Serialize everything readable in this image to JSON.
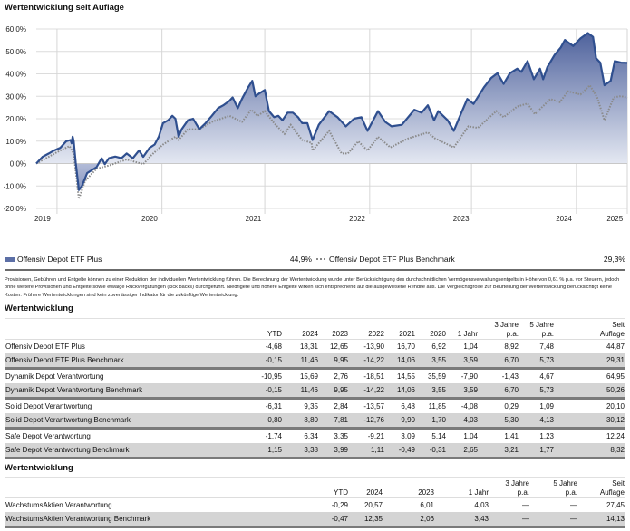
{
  "chart_data": {
    "type": "area",
    "title": "Wertentwicklung seit Auflage",
    "xlabel": "",
    "ylabel": "",
    "x_unit": "years since inception (approx.)",
    "xlim": [
      0,
      5.69
    ],
    "ylim": [
      -20,
      60
    ],
    "yticks": [
      60,
      50,
      40,
      30,
      20,
      10,
      0,
      -10,
      -20
    ],
    "ytick_labels": [
      "60,0%",
      "50,0%",
      "40,0%",
      "30,0%",
      "20,0%",
      "10,0%",
      "0,0%",
      "-10,0%",
      "-20,0%"
    ],
    "x_gridlines": [
      0.2,
      1.21,
      2.2,
      3.21,
      4.19,
      5.2
    ],
    "xticks": [
      {
        "label": "2019",
        "x": 0.06
      },
      {
        "label": "2020",
        "x": 1.09
      },
      {
        "label": "2021",
        "x": 2.09
      },
      {
        "label": "2022",
        "x": 3.09
      },
      {
        "label": "2023",
        "x": 4.09
      },
      {
        "label": "2024",
        "x": 5.08
      },
      {
        "label": "2025",
        "x": 5.57
      }
    ],
    "grid": true,
    "legend_position": "bottom",
    "series": [
      {
        "name": "Offensiv Depot ETF Plus",
        "final_label": "44,9%",
        "color": "#2f4f8f",
        "style": "solid-area",
        "x": [
          0,
          0.06,
          0.12,
          0.17,
          0.23,
          0.29,
          0.33,
          0.34,
          0.35,
          0.36,
          0.38,
          0.41,
          0.44,
          0.49,
          0.58,
          0.63,
          0.66,
          0.7,
          0.76,
          0.82,
          0.87,
          0.93,
          0.99,
          1.03,
          1.09,
          1.14,
          1.18,
          1.22,
          1.27,
          1.31,
          1.34,
          1.37,
          1.4,
          1.46,
          1.51,
          1.57,
          1.63,
          1.69,
          1.75,
          1.8,
          1.86,
          1.89,
          1.94,
          1.98,
          2.04,
          2.08,
          2.11,
          2.15,
          2.2,
          2.24,
          2.29,
          2.33,
          2.37,
          2.42,
          2.47,
          2.52,
          2.56,
          2.61,
          2.65,
          2.66,
          2.72,
          2.82,
          2.9,
          2.98,
          3.06,
          3.13,
          3.19,
          3.29,
          3.36,
          3.42,
          3.52,
          3.64,
          3.71,
          3.77,
          3.83,
          3.87,
          3.96,
          4.02,
          4.08,
          4.15,
          4.21,
          4.31,
          4.38,
          4.44,
          4.5,
          4.56,
          4.63,
          4.67,
          4.73,
          4.79,
          4.85,
          4.88,
          4.92,
          4.99,
          5.05,
          5.09,
          5.17,
          5.24,
          5.31,
          5.36,
          5.39,
          5.43,
          5.47,
          5.53,
          5.57,
          5.63,
          5.69
        ],
        "y": [
          0,
          3,
          4.5,
          5.8,
          7,
          10,
          10.5,
          9,
          12,
          10,
          0.4,
          -11.8,
          -10,
          -4.3,
          -1.6,
          2.4,
          -0.3,
          2.4,
          3.1,
          2.4,
          4.5,
          2.4,
          5.8,
          3,
          7,
          8.5,
          12,
          18,
          19.3,
          21.3,
          20,
          12,
          15.3,
          19.3,
          20,
          15.3,
          18,
          21.3,
          24.7,
          26,
          28,
          29.5,
          24.7,
          28.8,
          34,
          36.9,
          30,
          31.4,
          32.8,
          23.4,
          20.7,
          21.3,
          19.3,
          22.7,
          22.7,
          20.7,
          18,
          18,
          12,
          10.5,
          17.3,
          23.4,
          20.7,
          16.6,
          20,
          20.7,
          14.6,
          23.4,
          18.6,
          16.6,
          17.3,
          24,
          22.7,
          26,
          19.3,
          23.4,
          19.3,
          14.6,
          21.3,
          28.8,
          26.6,
          34,
          38.2,
          40.3,
          35.5,
          40.3,
          42.3,
          40.9,
          45.7,
          37.6,
          42.3,
          37.6,
          43,
          48.4,
          51.8,
          55.1,
          52.4,
          55.8,
          58.2,
          56.5,
          47,
          45,
          34.9,
          36.9,
          45.7,
          45,
          44.9
        ]
      },
      {
        "name": "Offensiv Depot ETF Plus Benchmark",
        "final_label": "29,3%",
        "color": "#8a8a8a",
        "style": "dotted",
        "x": [
          0,
          0.23,
          0.32,
          0.36,
          0.41,
          0.47,
          0.58,
          0.7,
          0.87,
          1.03,
          1.11,
          1.22,
          1.34,
          1.37,
          1.46,
          1.57,
          1.69,
          1.86,
          1.98,
          2.07,
          2.13,
          2.2,
          2.29,
          2.39,
          2.45,
          2.56,
          2.65,
          2.66,
          2.82,
          2.94,
          3.0,
          3.1,
          3.19,
          3.29,
          3.41,
          3.58,
          3.77,
          3.84,
          4.02,
          4.16,
          4.25,
          4.43,
          4.5,
          4.63,
          4.73,
          4.8,
          4.95,
          5.04,
          5.12,
          5.24,
          5.33,
          5.4,
          5.47,
          5.56,
          5.63,
          5.69
        ],
        "y": [
          0,
          5.8,
          7.8,
          4.5,
          -15.8,
          -7.7,
          -2.3,
          -0.9,
          1.8,
          -0.3,
          3.8,
          8.5,
          12,
          10.5,
          15.3,
          15.3,
          18.6,
          21.3,
          18.6,
          24,
          21.3,
          23.4,
          18,
          13.2,
          17.3,
          10.5,
          9.2,
          5.8,
          14.6,
          4.5,
          4.5,
          9.9,
          5.8,
          11.9,
          7.2,
          11.2,
          13.9,
          11.2,
          7.2,
          16.6,
          15.9,
          23.4,
          20.7,
          25.4,
          26.8,
          22,
          28.8,
          27.4,
          32.2,
          30.8,
          34.9,
          29.5,
          19.3,
          29.5,
          30.1,
          29.3
        ]
      }
    ]
  },
  "disclaimer": "Provisionen, Gebühren und Entgelte können zu einer Reduktion der individuellen Wertentwicklung führen. Die Berechnung der Wertentwicklung wurde unter Berücksichtigung des durchschnittlichen Vermögensverwaltungsentgelts in Höhe von 0,61 % p.a. vor Steuern, jedoch ohne weitere Provisionen und Entgelte sowie etwaige Rückvergütungen (kick backs) durchgeführt. Niedrigere und höhere Entgelte wirken sich entsprechend auf die ausgewiesene Rendite aus. Die Vergleichsgröße zur Beurteilung der Wertentwicklung berücksichtigt keine Kosten. Frühere Wertentwicklungen sind kein zuverlässiger Indikator für die zukünftige Wertentwicklung.",
  "table1": {
    "heading": "Wertentwicklung",
    "columns": [
      "YTD",
      "2024",
      "2023",
      "2022",
      "2021",
      "2020",
      "1 Jahr",
      "3 Jahre p.a.",
      "5 Jahre p.a.",
      "Seit Auflage"
    ],
    "col_lines": [
      [
        "YTD",
        ""
      ],
      [
        "2024",
        ""
      ],
      [
        "2023",
        ""
      ],
      [
        "2022",
        ""
      ],
      [
        "2021",
        ""
      ],
      [
        "2020",
        ""
      ],
      [
        "1 Jahr",
        ""
      ],
      [
        "3 Jahre",
        "p.a."
      ],
      [
        "5 Jahre",
        "p.a."
      ],
      [
        "Seit",
        "Auflage"
      ]
    ],
    "rows": [
      {
        "name": "Offensiv Depot ETF Plus",
        "values": [
          "-4,68",
          "18,31",
          "12,65",
          "-13,90",
          "16,70",
          "6,92",
          "1,04",
          "8,92",
          "7,48",
          "44,87"
        ]
      },
      {
        "name": "Offensiv Depot ETF Plus Benchmark",
        "values": [
          "-0,15",
          "11,46",
          "9,95",
          "-14,22",
          "14,06",
          "3,55",
          "3,59",
          "6,70",
          "5,73",
          "29,31"
        ]
      },
      {
        "name": "Dynamik Depot Verantwortung",
        "values": [
          "-10,95",
          "15,69",
          "2,76",
          "-18,51",
          "14,55",
          "35,59",
          "-7,90",
          "-1,43",
          "4,67",
          "64,95"
        ]
      },
      {
        "name": "Dynamik Depot Verantwortung Benchmark",
        "values": [
          "-0,15",
          "11,46",
          "9,95",
          "-14,22",
          "14,06",
          "3,55",
          "3,59",
          "6,70",
          "5,73",
          "50,26"
        ]
      },
      {
        "name": "Solid Depot Verantwortung",
        "values": [
          "-6,31",
          "9,35",
          "2,84",
          "-13,57",
          "6,48",
          "11,85",
          "-4,08",
          "0,29",
          "1,09",
          "20,10"
        ]
      },
      {
        "name": "Solid Depot Verantwortung Benchmark",
        "values": [
          "0,80",
          "8,80",
          "7,81",
          "-12,76",
          "9,90",
          "1,70",
          "4,03",
          "5,30",
          "4,13",
          "30,12"
        ]
      },
      {
        "name": "Safe Depot Verantwortung",
        "values": [
          "-1,74",
          "6,34",
          "3,35",
          "-9,21",
          "3,09",
          "5,14",
          "1,04",
          "1,41",
          "1,23",
          "12,24"
        ]
      },
      {
        "name": "Safe Depot Verantwortung Benchmark",
        "values": [
          "1,15",
          "3,38",
          "3,99",
          "1,11",
          "-0,49",
          "-0,31",
          "2,65",
          "3,21",
          "1,77",
          "8,32"
        ]
      }
    ]
  },
  "table2": {
    "heading": "Wertentwicklung",
    "col_lines": [
      [
        "YTD",
        ""
      ],
      [
        "2024",
        ""
      ],
      [
        "2023",
        ""
      ],
      [
        "1 Jahr",
        ""
      ],
      [
        "3 Jahre",
        "p.a."
      ],
      [
        "5 Jahre",
        "p.a."
      ],
      [
        "Seit",
        "Auflage"
      ]
    ],
    "rows": [
      {
        "name": "WachstumsAktien Verantwortung",
        "values": [
          "-0,29",
          "20,57",
          "6,01",
          "4,03",
          "—",
          "—",
          "27,45"
        ]
      },
      {
        "name": "WachstumsAktien Verantwortung Benchmark",
        "values": [
          "-0,47",
          "12,35",
          "2,06",
          "3,43",
          "—",
          "—",
          "14,13"
        ]
      }
    ]
  }
}
